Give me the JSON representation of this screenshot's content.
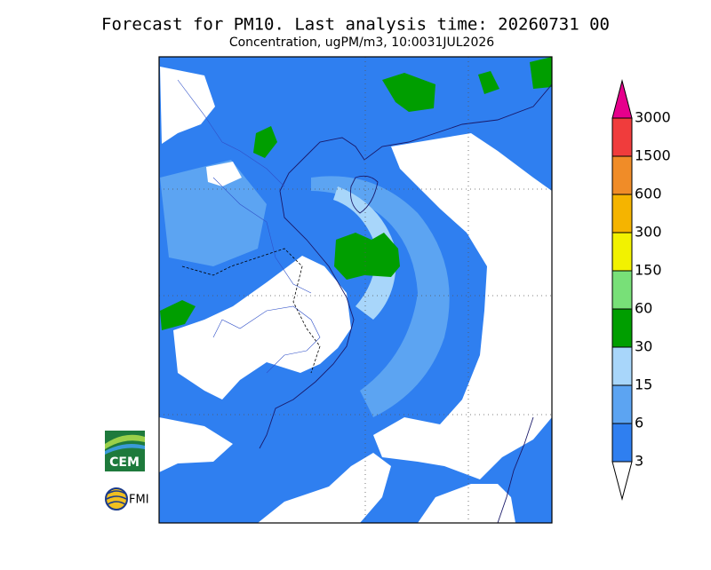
{
  "header": {
    "title": "Forecast for PM10. Last analysis time: 20260731 00",
    "subtitle": "Concentration, ugPM/m3, 10:0031JUL2026"
  },
  "legend": {
    "levels": [
      3,
      6,
      15,
      30,
      60,
      150,
      300,
      600,
      1500,
      3000
    ],
    "colors": [
      "#ffffff",
      "#2f7ff0",
      "#5ca4f2",
      "#a8d6fa",
      "#009e00",
      "#78e078",
      "#f2f200",
      "#f5b400",
      "#f08c28",
      "#f03c3c",
      "#e6008c"
    ]
  },
  "logos": {
    "cem": "CEM",
    "fmi": "FMI"
  }
}
